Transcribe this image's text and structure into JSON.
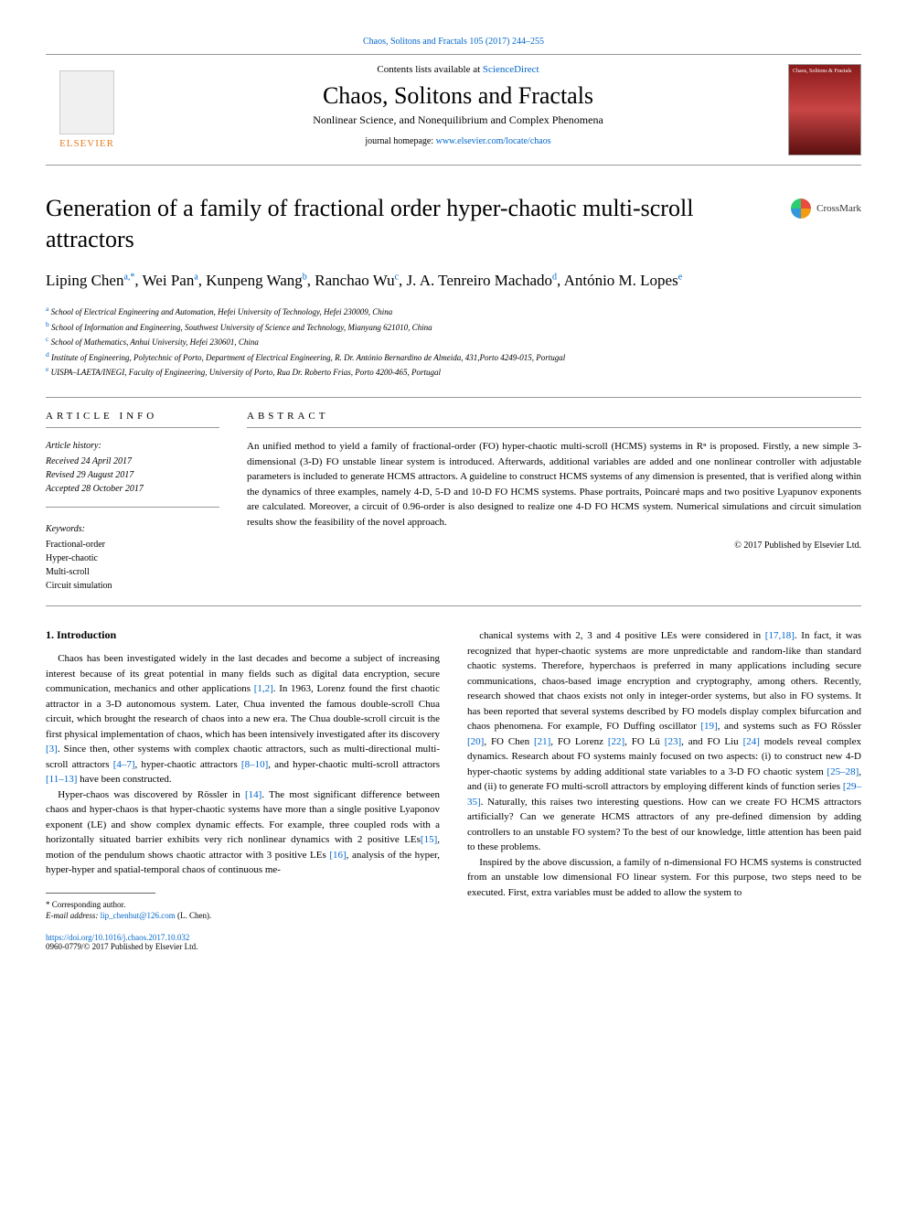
{
  "header": {
    "top_link": "Chaos, Solitons and Fractals 105 (2017) 244–255",
    "contents_prefix": "Contents lists available at ",
    "contents_link": "ScienceDirect",
    "journal_name": "Chaos, Solitons and Fractals",
    "journal_subtitle": "Nonlinear Science, and Nonequilibrium and Complex Phenomena",
    "homepage_prefix": "journal homepage: ",
    "homepage_url": "www.elsevier.com/locate/chaos",
    "publisher_name": "ELSEVIER",
    "crossmark_label": "CrossMark"
  },
  "article": {
    "title": "Generation of a family of fractional order hyper-chaotic multi-scroll attractors",
    "authors_html": "Liping Chen<sup>a,*</sup>, Wei Pan<sup>a</sup>, Kunpeng Wang<sup>b</sup>, Ranchao Wu<sup>c</sup>, J. A. Tenreiro Machado<sup>d</sup>, António M. Lopes<sup>e</sup>",
    "affiliations": [
      {
        "sup": "a",
        "text": "School of Electrical Engineering and Automation, Hefei University of Technology, Hefei 230009, China"
      },
      {
        "sup": "b",
        "text": "School of Information and Engineering, Southwest University of Science and Technology, Mianyang 621010, China"
      },
      {
        "sup": "c",
        "text": "School of Mathematics, Anhui University, Hefei 230601, China"
      },
      {
        "sup": "d",
        "text": "Institute of Engineering, Polytechnic of Porto, Department of Electrical Engineering, R. Dr. António Bernardino de Almeida, 431,Porto 4249-015, Portugal"
      },
      {
        "sup": "e",
        "text": "UISPA–LAETA/INEGI, Faculty of Engineering, University of Porto, Rua Dr. Roberto Frias, Porto 4200-465, Portugal"
      }
    ]
  },
  "info": {
    "heading": "ARTICLE INFO",
    "history_label": "Article history:",
    "received": "Received 24 April 2017",
    "revised": "Revised 29 August 2017",
    "accepted": "Accepted 28 October 2017",
    "keywords_label": "Keywords:",
    "keywords": [
      "Fractional-order",
      "Hyper-chaotic",
      "Multi-scroll",
      "Circuit simulation"
    ]
  },
  "abstract": {
    "heading": "ABSTRACT",
    "text": "An unified method to yield a family of fractional-order (FO) hyper-chaotic multi-scroll (HCMS) systems in Rⁿ is proposed. Firstly, a new simple 3-dimensional (3-D) FO unstable linear system is introduced. Afterwards, additional variables are added and one nonlinear controller with adjustable parameters is included to generate HCMS attractors. A guideline to construct HCMS systems of any dimension is presented, that is verified along within the dynamics of three examples, namely 4-D, 5-D and 10-D FO HCMS systems. Phase portraits, Poincaré maps and two positive Lyapunov exponents are calculated. Moreover, a circuit of 0.96-order is also designed to realize one 4-D FO HCMS system. Numerical simulations and circuit simulation results show the feasibility of the novel approach.",
    "copyright": "© 2017 Published by Elsevier Ltd."
  },
  "body": {
    "section_heading": "1. Introduction",
    "col1_paragraphs": [
      "Chaos has been investigated widely in the last decades and become a subject of increasing interest because of its great potential in many fields such as digital data encryption, secure communication, mechanics and other applications <span class='ref'>[1,2]</span>. In 1963, Lorenz found the first chaotic attractor in a 3-D autonomous system. Later, Chua invented the famous double-scroll Chua circuit, which brought the research of chaos into a new era. The Chua double-scroll circuit is the first physical implementation of chaos, which has been intensively investigated after its discovery <span class='ref'>[3]</span>. Since then, other systems with complex chaotic attractors, such as multi-directional multi-scroll attractors <span class='ref'>[4–7]</span>, hyper-chaotic attractors <span class='ref'>[8–10]</span>, and hyper-chaotic multi-scroll attractors <span class='ref'>[11–13]</span> have been constructed.",
      "Hyper-chaos was discovered by Rössler in <span class='ref'>[14]</span>. The most significant difference between chaos and hyper-chaos is that hyper-chaotic systems have more than a single positive Lyaponov exponent (LE) and show complex dynamic effects. For example, three coupled rods with a horizontally situated barrier exhibits very rich nonlinear dynamics with 2 positive LEs<span class='ref'>[15]</span>, motion of the pendulum shows chaotic attractor with 3 positive LEs <span class='ref'>[16]</span>, analysis of the hyper, hyper-hyper and spatial-temporal chaos of continuous me-"
    ],
    "col2_paragraphs": [
      "chanical systems with 2, 3 and 4 positive LEs were considered in <span class='ref'>[17,18]</span>. In fact, it was recognized that hyper-chaotic systems are more unpredictable and random-like than standard chaotic systems. Therefore, hyperchaos is preferred in many applications including secure communications, chaos-based image encryption and cryptography, among others. Recently, research showed that chaos exists not only in integer-order systems, but also in FO systems. It has been reported that several systems described by FO models display complex bifurcation and chaos phenomena. For example, FO Duffing oscillator <span class='ref'>[19]</span>, and systems such as FO Rössler <span class='ref'>[20]</span>, FO Chen <span class='ref'>[21]</span>, FO Lorenz <span class='ref'>[22]</span>, FO Lü <span class='ref'>[23]</span>, and FO Liu <span class='ref'>[24]</span> models reveal complex dynamics. Research about FO systems mainly focused on two aspects: (i) to construct new 4-D hyper-chaotic systems by adding additional state variables to a 3-D FO chaotic system <span class='ref'>[25–28]</span>, and (ii) to generate FO multi-scroll attractors by employing different kinds of function series <span class='ref'>[29–35]</span>. Naturally, this raises two interesting questions. How can we create FO HCMS attractors artificially? Can we generate HCMS attractors of any pre-defined dimension by adding controllers to an unstable FO system? To the best of our knowledge, little attention has been paid to these problems.",
      "Inspired by the above discussion, a family of n-dimensional FO HCMS systems is constructed from an unstable low dimensional FO linear system. For this purpose, two steps need to be executed. First, extra variables must be added to allow the system to"
    ]
  },
  "footnote": {
    "corresponding": "* Corresponding author.",
    "email_label": "E-mail address: ",
    "email": "lip_chenhut@126.com",
    "email_suffix": " (L. Chen)."
  },
  "footer": {
    "doi": "https://doi.org/10.1016/j.chaos.2017.10.032",
    "issn_line": "0960-0779/© 2017 Published by Elsevier Ltd."
  },
  "colors": {
    "link": "#0066cc",
    "border": "#999999",
    "publisher": "#e67e22",
    "text": "#000000"
  }
}
